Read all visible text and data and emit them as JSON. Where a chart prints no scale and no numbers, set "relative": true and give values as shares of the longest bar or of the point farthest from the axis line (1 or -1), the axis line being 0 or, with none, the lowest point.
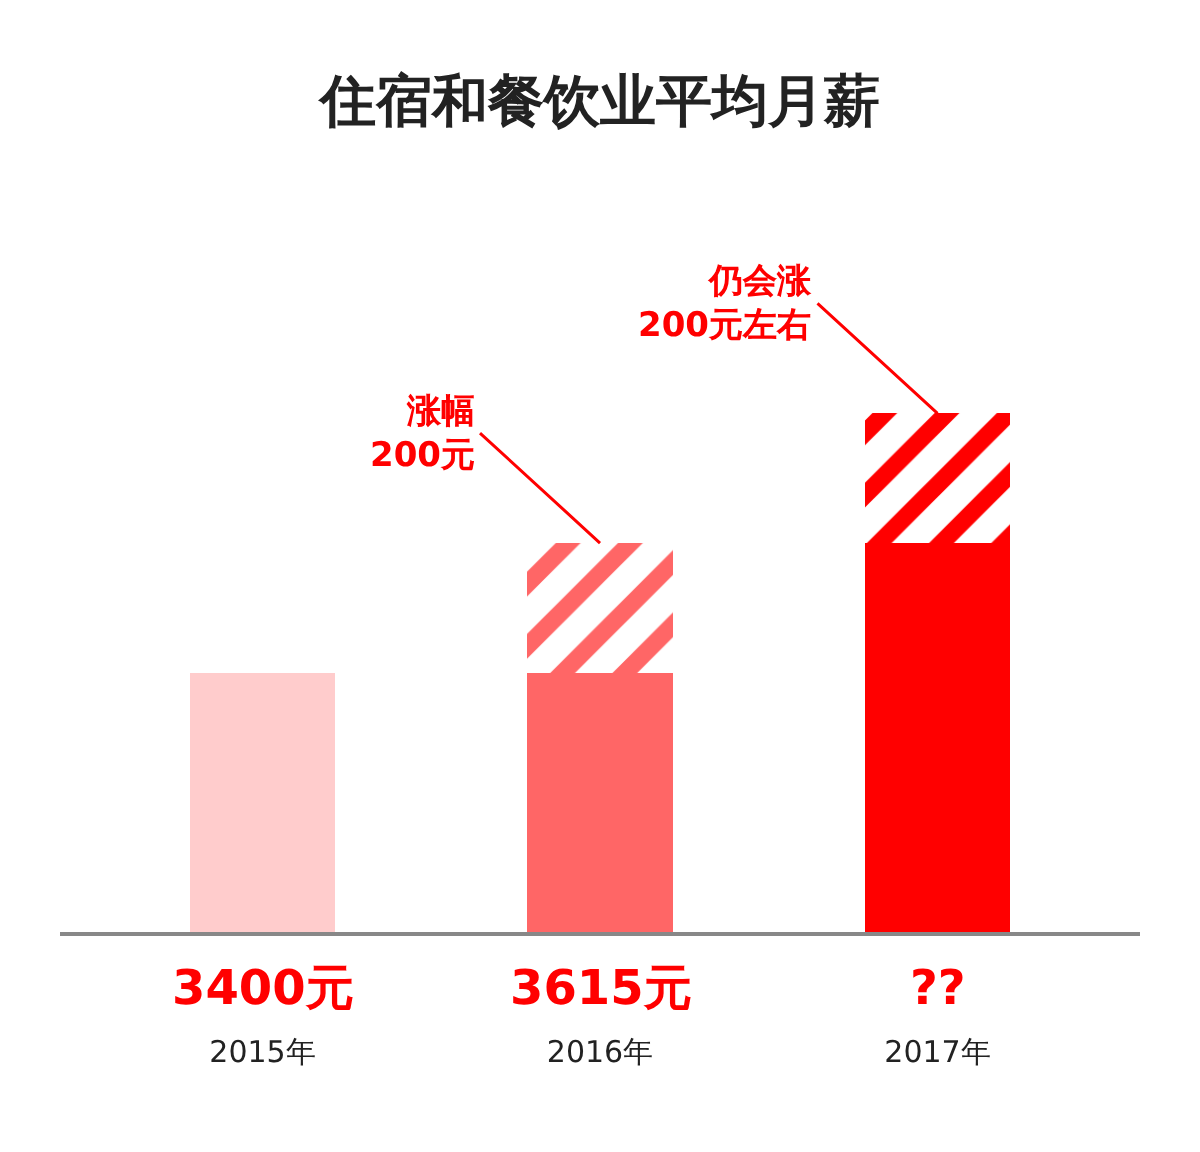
{
  "chart_data": {
    "type": "bar",
    "title": "住宿和餐饮业平均月薪",
    "relative": true,
    "stacked": true,
    "legend": false,
    "categories": [
      "2015年",
      "2016年",
      "2017年"
    ],
    "series": [
      {
        "colors": [
          "#ffcccc",
          "#ff6666",
          "#ff0000"
        ],
        "values": [
          0.5,
          0.5,
          0.75
        ]
      },
      {
        "colors": [
          "#ff6666",
          "#ff6666",
          "#ff0000"
        ],
        "values": [
          null,
          0.25,
          0.25
        ]
      }
    ],
    "annotations": [
      "3400元",
      "3615元",
      "??",
      {
        "text": "涨幅\n200元",
        "x": "2016年",
        "y": 0.75
      },
      {
        "text": "仍会涨\n200元左右",
        "x": "2017年",
        "y": 1.0
      }
    ]
  }
}
